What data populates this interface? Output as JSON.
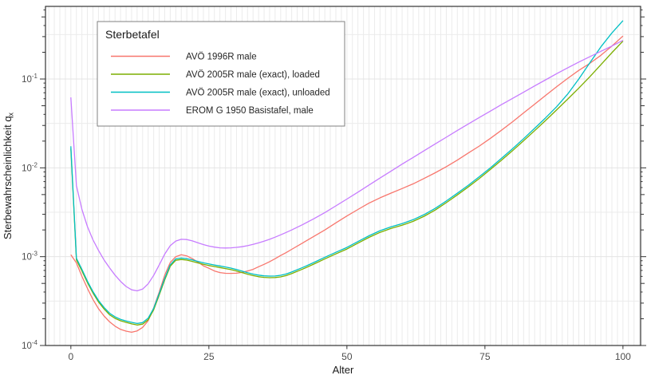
{
  "chart_data": {
    "type": "line",
    "xlabel": "Alter",
    "ylabel": "Sterbewahrscheinlichkeit q",
    "ylabel_sub": "x",
    "x_ticks": [
      0,
      25,
      50,
      75,
      100
    ],
    "y_ticks": [
      {
        "base": "10",
        "exp": "-1",
        "value": 0.1
      },
      {
        "base": "10",
        "exp": "-2",
        "value": 0.01
      },
      {
        "base": "10",
        "exp": "-3",
        "value": 0.001
      },
      {
        "base": "10",
        "exp": "-4",
        "value": 0.0001
      }
    ],
    "xlim": [
      -4.6,
      103.2
    ],
    "ylim": [
      0.0001,
      0.657
    ],
    "grid": {
      "minor_color": "#ebebeb",
      "major_color": "#e4e4e4",
      "background": "#ffffff",
      "border_color": "#333333"
    },
    "text_colors": {
      "tick_label": "#4d4d4d",
      "axis_title": "#1a1a1a",
      "legend_title": "#1a1a1a",
      "legend_label": "#262626"
    },
    "legend": {
      "title": "Sterbetafel",
      "position": "top-left-inside",
      "border_color": "#808080",
      "fill": "#ffffff"
    },
    "series": [
      {
        "name": "AVÖ 1996R male",
        "color": "#F8766D",
        "points": [
          [
            0,
            0.00105
          ],
          [
            1,
            0.00085
          ],
          [
            2,
            0.0006
          ],
          [
            3,
            0.00044
          ],
          [
            4,
            0.00033
          ],
          [
            5,
            0.00026
          ],
          [
            6,
            0.000215
          ],
          [
            7,
            0.000185
          ],
          [
            8,
            0.000165
          ],
          [
            9,
            0.000152
          ],
          [
            10,
            0.000145
          ],
          [
            11,
            0.000141
          ],
          [
            12,
            0.000146
          ],
          [
            13,
            0.00016
          ],
          [
            14,
            0.00019
          ],
          [
            15,
            0.000265
          ],
          [
            16,
            0.0004
          ],
          [
            17,
            0.00062
          ],
          [
            18,
            0.00086
          ],
          [
            19,
            0.001
          ],
          [
            20,
            0.00105
          ],
          [
            21,
            0.00102
          ],
          [
            22,
            0.00095
          ],
          [
            23,
            0.00087
          ],
          [
            24,
            0.00079
          ],
          [
            25,
            0.00074
          ],
          [
            26,
            0.00069
          ],
          [
            27,
            0.000662
          ],
          [
            28,
            0.00065
          ],
          [
            29,
            0.000648
          ],
          [
            30,
            0.000652
          ],
          [
            31,
            0.000665
          ],
          [
            32,
            0.00069
          ],
          [
            33,
            0.00072
          ],
          [
            34,
            0.00077
          ],
          [
            35,
            0.00082
          ],
          [
            36,
            0.00088
          ],
          [
            37,
            0.00095
          ],
          [
            38,
            0.00103
          ],
          [
            39,
            0.00111
          ],
          [
            40,
            0.00121
          ],
          [
            42,
            0.00143
          ],
          [
            44,
            0.00169
          ],
          [
            46,
            0.002
          ],
          [
            48,
            0.0024
          ],
          [
            50,
            0.00287
          ],
          [
            52,
            0.0034
          ],
          [
            54,
            0.004
          ],
          [
            56,
            0.0046
          ],
          [
            58,
            0.0052
          ],
          [
            60,
            0.00585
          ],
          [
            62,
            0.0066
          ],
          [
            64,
            0.0076
          ],
          [
            66,
            0.0088
          ],
          [
            68,
            0.0103
          ],
          [
            70,
            0.0122
          ],
          [
            72,
            0.0147
          ],
          [
            74,
            0.0176
          ],
          [
            76,
            0.0215
          ],
          [
            78,
            0.0265
          ],
          [
            80,
            0.033
          ],
          [
            82,
            0.0415
          ],
          [
            84,
            0.052
          ],
          [
            86,
            0.0655
          ],
          [
            88,
            0.082
          ],
          [
            90,
            0.102
          ],
          [
            92,
            0.125
          ],
          [
            94,
            0.15
          ],
          [
            96,
            0.185
          ],
          [
            98,
            0.235
          ],
          [
            100,
            0.305
          ]
        ]
      },
      {
        "name": "AVÖ 2005R male (exact), loaded",
        "color": "#7CAE00",
        "points": [
          [
            0,
            0.0165
          ],
          [
            1,
            0.00092
          ],
          [
            2,
            0.00069
          ],
          [
            3,
            0.00051
          ],
          [
            4,
            0.00039
          ],
          [
            5,
            0.00031
          ],
          [
            6,
            0.000258
          ],
          [
            7,
            0.000222
          ],
          [
            8,
            0.000202
          ],
          [
            9,
            0.00019
          ],
          [
            10,
            0.000182
          ],
          [
            11,
            0.000175
          ],
          [
            12,
            0.00017
          ],
          [
            13,
            0.000174
          ],
          [
            14,
            0.000195
          ],
          [
            15,
            0.000252
          ],
          [
            16,
            0.00037
          ],
          [
            17,
            0.00055
          ],
          [
            18,
            0.00078
          ],
          [
            19,
            0.00091
          ],
          [
            20,
            0.00093
          ],
          [
            21,
            0.000915
          ],
          [
            22,
            0.000885
          ],
          [
            23,
            0.00085
          ],
          [
            24,
            0.00082
          ],
          [
            25,
            0.000795
          ],
          [
            26,
            0.000775
          ],
          [
            27,
            0.000755
          ],
          [
            28,
            0.000735
          ],
          [
            29,
            0.000715
          ],
          [
            30,
            0.00069
          ],
          [
            31,
            0.000662
          ],
          [
            32,
            0.000635
          ],
          [
            33,
            0.000612
          ],
          [
            34,
            0.000595
          ],
          [
            35,
            0.000585
          ],
          [
            36,
            0.00058
          ],
          [
            37,
            0.000582
          ],
          [
            38,
            0.000592
          ],
          [
            39,
            0.000612
          ],
          [
            40,
            0.000645
          ],
          [
            42,
            0.000725
          ],
          [
            44,
            0.000825
          ],
          [
            46,
            0.000945
          ],
          [
            48,
            0.001075
          ],
          [
            50,
            0.00122
          ],
          [
            52,
            0.00142
          ],
          [
            54,
            0.00165
          ],
          [
            56,
            0.00188
          ],
          [
            58,
            0.00208
          ],
          [
            60,
            0.00226
          ],
          [
            62,
            0.0025
          ],
          [
            64,
            0.00285
          ],
          [
            66,
            0.00335
          ],
          [
            68,
            0.00405
          ],
          [
            70,
            0.00495
          ],
          [
            72,
            0.0061
          ],
          [
            74,
            0.0076
          ],
          [
            76,
            0.0096
          ],
          [
            78,
            0.0122
          ],
          [
            80,
            0.0156
          ],
          [
            82,
            0.0202
          ],
          [
            84,
            0.0262
          ],
          [
            86,
            0.0342
          ],
          [
            88,
            0.045
          ],
          [
            90,
            0.0595
          ],
          [
            92,
            0.079
          ],
          [
            94,
            0.106
          ],
          [
            96,
            0.145
          ],
          [
            98,
            0.198
          ],
          [
            100,
            0.268
          ]
        ]
      },
      {
        "name": "AVÖ 2005R male (exact), unloaded",
        "color": "#00BFC4",
        "points": [
          [
            0,
            0.0175
          ],
          [
            1,
            0.00096
          ],
          [
            2,
            0.00072
          ],
          [
            3,
            0.00053
          ],
          [
            4,
            0.000405
          ],
          [
            5,
            0.000322
          ],
          [
            6,
            0.000268
          ],
          [
            7,
            0.000231
          ],
          [
            8,
            0.00021
          ],
          [
            9,
            0.000197
          ],
          [
            10,
            0.000189
          ],
          [
            11,
            0.000182
          ],
          [
            12,
            0.000177
          ],
          [
            13,
            0.000181
          ],
          [
            14,
            0.000203
          ],
          [
            15,
            0.000262
          ],
          [
            16,
            0.000385
          ],
          [
            17,
            0.000572
          ],
          [
            18,
            0.00081
          ],
          [
            19,
            0.000945
          ],
          [
            20,
            0.000965
          ],
          [
            21,
            0.00095
          ],
          [
            22,
            0.00092
          ],
          [
            23,
            0.000885
          ],
          [
            24,
            0.000853
          ],
          [
            25,
            0.000828
          ],
          [
            26,
            0.000806
          ],
          [
            27,
            0.000786
          ],
          [
            28,
            0.000765
          ],
          [
            29,
            0.000744
          ],
          [
            30,
            0.000718
          ],
          [
            31,
            0.000689
          ],
          [
            32,
            0.000661
          ],
          [
            33,
            0.000637
          ],
          [
            34,
            0.00062
          ],
          [
            35,
            0.000609
          ],
          [
            36,
            0.000604
          ],
          [
            37,
            0.000606
          ],
          [
            38,
            0.000617
          ],
          [
            39,
            0.000638
          ],
          [
            40,
            0.000672
          ],
          [
            42,
            0.000756
          ],
          [
            44,
            0.00086
          ],
          [
            46,
            0.000985
          ],
          [
            48,
            0.00112
          ],
          [
            50,
            0.00127
          ],
          [
            52,
            0.00148
          ],
          [
            54,
            0.00172
          ],
          [
            56,
            0.00196
          ],
          [
            58,
            0.00217
          ],
          [
            60,
            0.00236
          ],
          [
            62,
            0.00261
          ],
          [
            64,
            0.00298
          ],
          [
            66,
            0.0035
          ],
          [
            68,
            0.00423
          ],
          [
            70,
            0.00517
          ],
          [
            72,
            0.00638
          ],
          [
            74,
            0.00795
          ],
          [
            76,
            0.01
          ],
          [
            78,
            0.0128
          ],
          [
            80,
            0.0164
          ],
          [
            82,
            0.0213
          ],
          [
            84,
            0.0278
          ],
          [
            86,
            0.0366
          ],
          [
            88,
            0.0488
          ],
          [
            90,
            0.068
          ],
          [
            92,
            0.1
          ],
          [
            94,
            0.152
          ],
          [
            96,
            0.23
          ],
          [
            98,
            0.33
          ],
          [
            100,
            0.455
          ]
        ]
      },
      {
        "name": "EROM G 1950 Basistafel, male",
        "color": "#C77CFF",
        "points": [
          [
            0,
            0.062
          ],
          [
            1,
            0.0063
          ],
          [
            2,
            0.0034
          ],
          [
            3,
            0.00218
          ],
          [
            4,
            0.00155
          ],
          [
            5,
            0.00118
          ],
          [
            6,
            0.00092
          ],
          [
            7,
            0.00075
          ],
          [
            8,
            0.00062
          ],
          [
            9,
            0.000528
          ],
          [
            10,
            0.000462
          ],
          [
            11,
            0.000424
          ],
          [
            12,
            0.000412
          ],
          [
            13,
            0.000432
          ],
          [
            14,
            0.000495
          ],
          [
            15,
            0.000615
          ],
          [
            16,
            0.00081
          ],
          [
            17,
            0.00107
          ],
          [
            18,
            0.00133
          ],
          [
            19,
            0.0015
          ],
          [
            20,
            0.00157
          ],
          [
            21,
            0.00156
          ],
          [
            22,
            0.001505
          ],
          [
            23,
            0.001435
          ],
          [
            24,
            0.00137
          ],
          [
            25,
            0.001315
          ],
          [
            26,
            0.00128
          ],
          [
            27,
            0.001258
          ],
          [
            28,
            0.001252
          ],
          [
            29,
            0.001258
          ],
          [
            30,
            0.001272
          ],
          [
            31,
            0.001295
          ],
          [
            32,
            0.00133
          ],
          [
            33,
            0.001375
          ],
          [
            34,
            0.00143
          ],
          [
            35,
            0.001495
          ],
          [
            36,
            0.00157
          ],
          [
            37,
            0.00166
          ],
          [
            38,
            0.00176
          ],
          [
            39,
            0.001875
          ],
          [
            40,
            0.002
          ],
          [
            42,
            0.0023
          ],
          [
            44,
            0.00267
          ],
          [
            46,
            0.00314
          ],
          [
            48,
            0.00373
          ],
          [
            50,
            0.00445
          ],
          [
            52,
            0.00533
          ],
          [
            54,
            0.0064
          ],
          [
            56,
            0.00768
          ],
          [
            58,
            0.0092
          ],
          [
            60,
            0.011
          ],
          [
            62,
            0.0131
          ],
          [
            64,
            0.0156
          ],
          [
            66,
            0.0186
          ],
          [
            68,
            0.0221
          ],
          [
            70,
            0.0263
          ],
          [
            72,
            0.0312
          ],
          [
            74,
            0.0369
          ],
          [
            76,
            0.0436
          ],
          [
            78,
            0.0515
          ],
          [
            80,
            0.0605
          ],
          [
            82,
            0.071
          ],
          [
            84,
            0.0835
          ],
          [
            86,
            0.098
          ],
          [
            88,
            0.115
          ],
          [
            90,
            0.134
          ],
          [
            92,
            0.155
          ],
          [
            94,
            0.178
          ],
          [
            96,
            0.205
          ],
          [
            98,
            0.235
          ],
          [
            100,
            0.272
          ]
        ]
      }
    ]
  }
}
